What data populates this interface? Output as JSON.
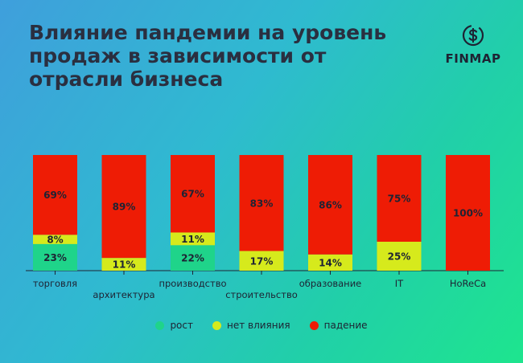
{
  "header": {
    "title": "Влияние пандемии на уровень продаж в зависимости от отрасли бизнеса",
    "brand": "FINMAP"
  },
  "colors": {
    "growth": "#1fd48a",
    "no_effect": "#d6ea1c",
    "decline": "#ee1c05",
    "label": "#1e2333"
  },
  "icons": {
    "brand_logo": "finmap-logo-icon"
  },
  "chart_data": {
    "type": "bar",
    "stacked": true,
    "percent_stacked": true,
    "title": "Влияние пандемии на уровень продаж в зависимости от отрасли бизнеса",
    "xlabel": "",
    "ylabel": "",
    "ylim": [
      0,
      100
    ],
    "grid": false,
    "legend_position": "bottom-center",
    "categories": [
      "торговля",
      "архитектура",
      "производство",
      "строительство",
      "образование",
      "IT",
      "HoReCa"
    ],
    "series": [
      {
        "name": "рост",
        "color": "#1fd48a",
        "values": [
          23,
          0,
          22,
          0,
          0,
          0,
          0
        ],
        "labels": [
          "23%",
          "",
          "22%",
          "",
          "",
          "",
          ""
        ]
      },
      {
        "name": "нет влияния",
        "color": "#d6ea1c",
        "values": [
          8,
          11,
          11,
          17,
          14,
          25,
          0
        ],
        "labels": [
          "8%",
          "11%",
          "11%",
          "17%",
          "14%",
          "25%",
          ""
        ]
      },
      {
        "name": "падение",
        "color": "#ee1c05",
        "values": [
          69,
          89,
          67,
          83,
          86,
          75,
          100
        ],
        "labels": [
          "69%",
          "89%",
          "67%",
          "83%",
          "86%",
          "75%",
          "100%"
        ]
      }
    ]
  }
}
